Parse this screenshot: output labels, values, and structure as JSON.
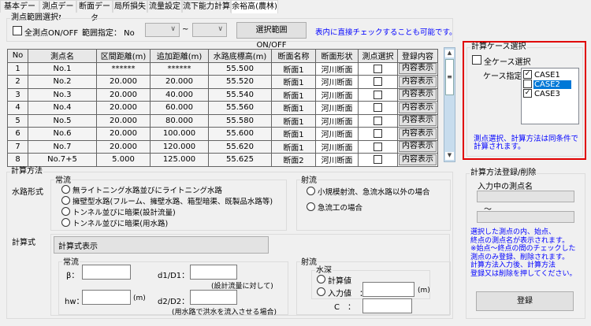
{
  "tabs": [
    "基本データ",
    "測点データ",
    "断面データ",
    "局所損失",
    "流量設定",
    "流下能力計算",
    "余裕高(農林)"
  ],
  "active_tab": 6,
  "range": {
    "group_label": "測点範囲選択",
    "all_toggle": "全測点ON/OFF",
    "range_label": "範囲指定： No",
    "tilde": "~",
    "from": "",
    "to": "",
    "toggle_button": "選択範囲　ON/OFF",
    "hint": "表内に直接チェックすることも可能です。"
  },
  "table": {
    "columns": [
      "No",
      "測点名",
      "区間距離(m)",
      "追加距離(m)",
      "水路底標高(m)",
      "断面名称",
      "断面形状",
      "測点選択",
      "登録内容"
    ],
    "rows": [
      [
        "1",
        "No.1",
        "******",
        "******",
        "55.500",
        "断面1",
        "河川断面",
        false,
        "内容表示"
      ],
      [
        "2",
        "No.2",
        "20.000",
        "20.000",
        "55.520",
        "断面1",
        "河川断面",
        false,
        "内容表示"
      ],
      [
        "3",
        "No.3",
        "20.000",
        "40.000",
        "55.540",
        "断面1",
        "河川断面",
        false,
        "内容表示"
      ],
      [
        "4",
        "No.4",
        "20.000",
        "60.000",
        "55.560",
        "断面1",
        "河川断面",
        false,
        "内容表示"
      ],
      [
        "5",
        "No.5",
        "20.000",
        "80.000",
        "55.580",
        "断面1",
        "河川断面",
        false,
        "内容表示"
      ],
      [
        "6",
        "No.6",
        "20.000",
        "100.000",
        "55.600",
        "断面1",
        "河川断面",
        false,
        "内容表示"
      ],
      [
        "7",
        "No.7",
        "20.000",
        "120.000",
        "55.620",
        "断面1",
        "河川断面",
        false,
        "内容表示"
      ],
      [
        "8",
        "No.7+5",
        "5.000",
        "125.000",
        "55.625",
        "断面2",
        "河川断面",
        false,
        "内容表示"
      ]
    ]
  },
  "case": {
    "group_label": "計算ケース選択",
    "all_label": "全ケース選択",
    "spec_label": "ケース指定",
    "items": [
      {
        "label": "CASE1",
        "checked": true
      },
      {
        "label": "CASE2",
        "checked": false,
        "selected": true
      },
      {
        "label": "CASE3",
        "checked": true
      }
    ],
    "note": "測点選択、計算方法は同条件で計算されます。",
    "highlight_color": "#e00000"
  },
  "method": {
    "group_label": "計算方法",
    "channel_label": "水路形式",
    "subcritical": {
      "label": "常流",
      "options": [
        "無ライトニング水路並びにライトニング水路",
        "擁壁型水路(フルーム、擁壁水路、箱型暗渠、既製品水路等)",
        "トンネル並びに暗渠(設計流量)",
        "トンネル並びに暗渠(用水路)"
      ]
    },
    "supercritical": {
      "label": "射流",
      "options": [
        "小規模射流、急流水路以外の場合",
        "急流工の場合"
      ]
    }
  },
  "formula": {
    "label": "計算式",
    "display": "計算式表示",
    "sub": {
      "label": "常流",
      "beta": "β：",
      "hw": "hw：",
      "m": "(m)",
      "d1": "d1/D1：",
      "d1_note": "(設計流量に対して)",
      "d2": "d2/D2：",
      "d2_note": "(用水路で洪水を流入させる場合)",
      "beta_value": "",
      "hw_value": "",
      "d1_value": "",
      "d2_value": ""
    },
    "super": {
      "label": "射流",
      "depth_label": "水深",
      "calc": "計算値",
      "input": "入力値　：",
      "m": "(m)",
      "c": "C　：",
      "input_value": "",
      "c_value": ""
    }
  },
  "register": {
    "group_label": "計算方法登録/削除",
    "current_label": "入力中の測点名",
    "start": "",
    "tilde": "～",
    "end": "",
    "note": "選択した測点の内、始点、\n終点の測点名が表示されます。\n※始点～終点の間のチェックした\n測点のみ登録、削除されます。\n計算方法入力後、計算方法\n登録又は削除を押してください。",
    "button": "登録"
  }
}
